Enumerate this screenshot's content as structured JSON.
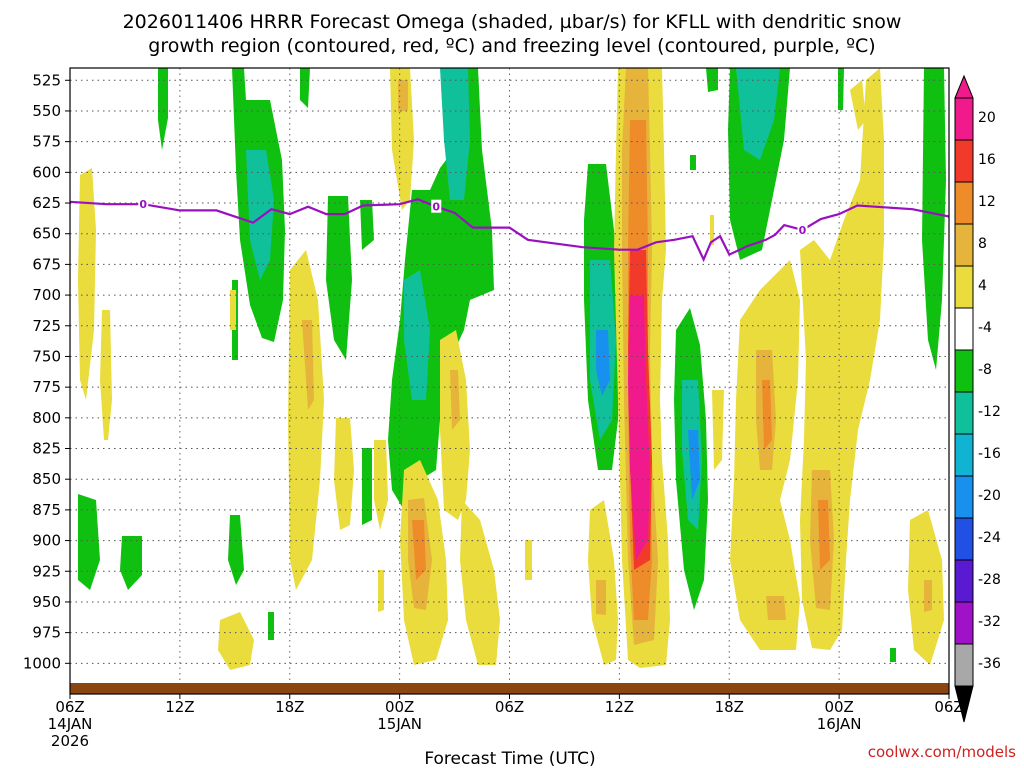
{
  "chart_data": {
    "type": "heatmap",
    "title_line1": "2026011406 HRRR Forecast Omega (shaded, µbar/s) for KFLL with dendritic snow",
    "title_line2": "growth region (contoured, red, ºC) and freezing level (contoured, purple, ºC)",
    "xlabel": "Forecast Time (UTC)",
    "watermark": "coolwx.com/models",
    "x_range_hours": [
      0,
      48
    ],
    "x_ticks": [
      {
        "hour": 0,
        "label": "06Z",
        "sub1": "14JAN",
        "sub2": "2026"
      },
      {
        "hour": 6,
        "label": "12Z",
        "sub1": "",
        "sub2": ""
      },
      {
        "hour": 12,
        "label": "18Z",
        "sub1": "",
        "sub2": ""
      },
      {
        "hour": 18,
        "label": "00Z",
        "sub1": "15JAN",
        "sub2": ""
      },
      {
        "hour": 24,
        "label": "06Z",
        "sub1": "",
        "sub2": ""
      },
      {
        "hour": 30,
        "label": "12Z",
        "sub1": "",
        "sub2": ""
      },
      {
        "hour": 36,
        "label": "18Z",
        "sub1": "",
        "sub2": ""
      },
      {
        "hour": 42,
        "label": "00Z",
        "sub1": "16JAN",
        "sub2": ""
      },
      {
        "hour": 48,
        "label": "06Z",
        "sub1": "",
        "sub2": ""
      }
    ],
    "y_range_mb": [
      1025,
      515
    ],
    "y_ticks": [
      525,
      550,
      575,
      600,
      625,
      650,
      675,
      700,
      725,
      750,
      775,
      800,
      825,
      850,
      875,
      900,
      925,
      950,
      975,
      1000
    ],
    "colorbar_levels": [
      {
        "label": "20",
        "color": "#f01a8c"
      },
      {
        "label": "16",
        "color": "#f23a2a"
      },
      {
        "label": "12",
        "color": "#ee8c2a"
      },
      {
        "label": "8",
        "color": "#e6b43a"
      },
      {
        "label": "4",
        "color": "#e9dc3c"
      },
      {
        "label": "-4",
        "color": "#ffffff"
      },
      {
        "label": "-8",
        "color": "#10c010"
      },
      {
        "label": "-12",
        "color": "#10c09a"
      },
      {
        "label": "-16",
        "color": "#10b4d2"
      },
      {
        "label": "-20",
        "color": "#1890ee"
      },
      {
        "label": "-24",
        "color": "#2050e4"
      },
      {
        "label": "-28",
        "color": "#5a1ad2"
      },
      {
        "label": "-32",
        "color": "#a012c8"
      },
      {
        "label": "-36",
        "color": "#a8a8a8"
      }
    ],
    "colorbar_top_color": "#f01a8c",
    "colorbar_bottom_color": "#000000",
    "freezing_level": {
      "label": "0",
      "color": "#9a10c0",
      "points": [
        [
          0,
          624
        ],
        [
          2,
          626
        ],
        [
          4,
          626
        ],
        [
          6,
          631
        ],
        [
          8,
          631
        ],
        [
          10,
          641
        ],
        [
          11,
          630
        ],
        [
          12,
          634
        ],
        [
          13,
          628
        ],
        [
          14,
          634
        ],
        [
          15,
          634
        ],
        [
          16,
          627
        ],
        [
          18,
          626
        ],
        [
          19,
          622
        ],
        [
          20,
          628
        ],
        [
          21,
          633
        ],
        [
          22,
          645
        ],
        [
          24,
          645
        ],
        [
          25,
          655
        ],
        [
          26,
          657
        ],
        [
          28,
          661
        ],
        [
          30,
          663
        ],
        [
          31,
          663
        ],
        [
          32,
          657
        ],
        [
          33,
          655
        ],
        [
          34,
          652
        ],
        [
          34.6,
          671
        ],
        [
          35,
          657
        ],
        [
          35.5,
          652
        ],
        [
          36,
          667
        ],
        [
          37,
          660
        ],
        [
          38,
          655
        ],
        [
          38.5,
          651
        ],
        [
          39,
          643
        ],
        [
          40,
          647
        ],
        [
          41,
          638
        ],
        [
          42,
          634
        ],
        [
          43,
          627
        ],
        [
          46,
          630
        ],
        [
          48,
          636
        ]
      ],
      "label_hours": [
        4,
        20,
        40
      ]
    },
    "surface_color": "#8b4513",
    "omega_features": [
      {
        "name": "dn-19z-green",
        "hour": 18.5,
        "t0": 570,
        "t1": 900,
        "w": 1.4,
        "level": "-8"
      },
      {
        "name": "dn-19z-teal",
        "hour": 18.6,
        "t0": 640,
        "t1": 760,
        "w": 0.6,
        "level": "-12"
      },
      {
        "name": "dn-21z-green",
        "hour": 21,
        "t0": 600,
        "t1": 710,
        "w": 0.9,
        "level": "-8"
      },
      {
        "name": "dn-17z-green",
        "hour": 16,
        "t0": 570,
        "t1": 700,
        "w": 1.0,
        "level": "-8"
      },
      {
        "name": "up-02z-yellow",
        "hour": 20.6,
        "t0": 800,
        "t1": 960,
        "w": 1.3,
        "level": "4"
      },
      {
        "name": "up-02z-orange",
        "hour": 20.8,
        "t0": 840,
        "t1": 920,
        "w": 0.5,
        "level": "8"
      },
      {
        "name": "up-14z-magenta",
        "hour": 30.8,
        "t0": 520,
        "t1": 965,
        "w": 0.7,
        "level": "20"
      },
      {
        "name": "dn-11z-blue",
        "hour": 29.2,
        "t0": 600,
        "t1": 800,
        "w": 0.7,
        "level": "-16"
      }
    ]
  }
}
